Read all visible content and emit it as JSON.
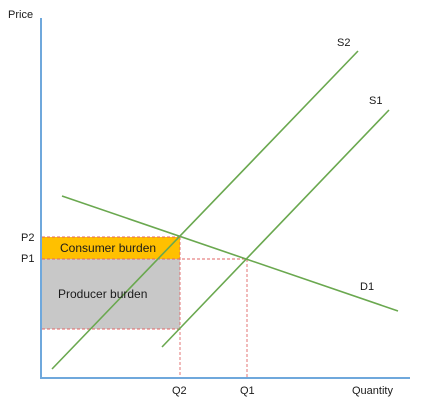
{
  "axes": {
    "y_label": "Price",
    "x_label": "Quantity",
    "color": "#6fa8dc"
  },
  "curves": {
    "s1_label": "S1",
    "s2_label": "S2",
    "d1_label": "D1",
    "color": "#6aa84f"
  },
  "ticks": {
    "p1": "P1",
    "p2": "P2",
    "q1": "Q1",
    "q2": "Q2",
    "guide_color": "#e06666"
  },
  "areas": {
    "consumer_burden": "Consumer burden",
    "producer_burden": "Producer burden",
    "consumer_color": "#ffc000",
    "producer_color": "#c8c8c8"
  }
}
